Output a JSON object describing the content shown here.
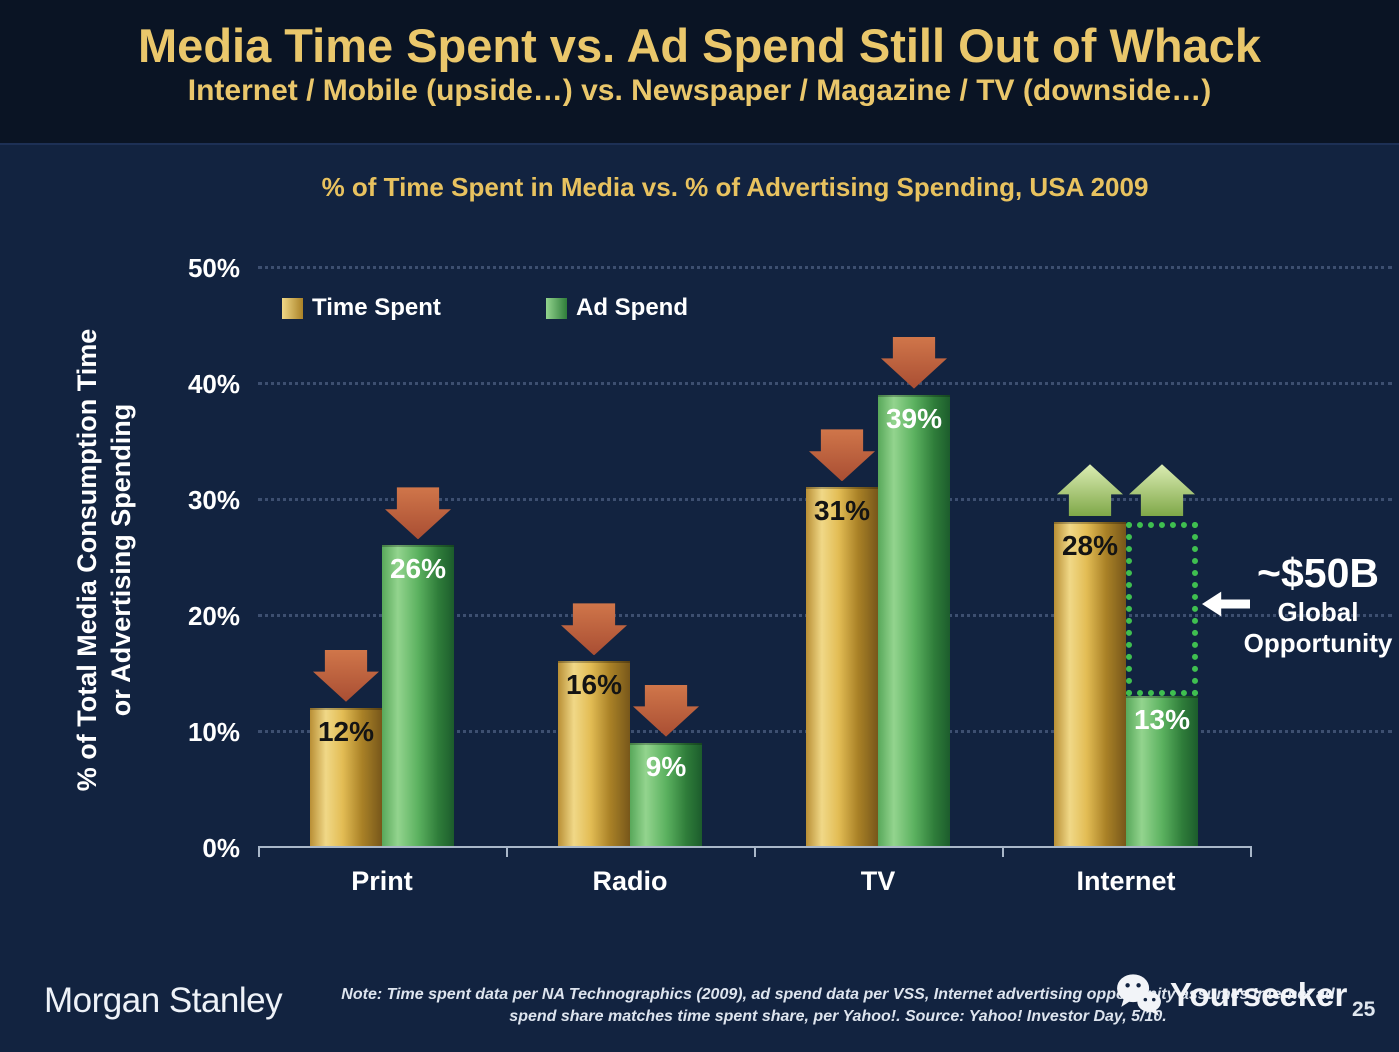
{
  "slide": {
    "title": "Media Time Spent vs. Ad Spend Still Out of Whack",
    "subtitle": "Internet / Mobile (upside…) vs. Newspaper / Magazine / TV (downside…)",
    "page_number": "25"
  },
  "chart_data": {
    "type": "bar",
    "title": "% of Time Spent in Media vs. % of Advertising Spending, USA 2009",
    "ylabel": "% of Total Media Consumption Time or Advertising Spending",
    "ylabel_lines": [
      "% of Total Media Consumption Time",
      "or Advertising Spending"
    ],
    "categories": [
      "Print",
      "Radio",
      "TV",
      "Internet"
    ],
    "series": [
      {
        "name": "Time Spent",
        "color": "#e3bd55",
        "values": [
          12,
          16,
          31,
          28
        ],
        "data_labels": [
          "12%",
          "16%",
          "31%",
          "28%"
        ],
        "arrows": [
          "down",
          "down",
          "down",
          "up"
        ]
      },
      {
        "name": "Ad Spend",
        "color": "#4ea34e",
        "values": [
          26,
          9,
          39,
          13
        ],
        "data_labels": [
          "26%",
          "9%",
          "39%",
          "13%"
        ],
        "arrows": [
          "down",
          "down",
          "down",
          "up"
        ]
      }
    ],
    "ylim": [
      0,
      50
    ],
    "ytick_labels": [
      "0%",
      "10%",
      "20%",
      "30%",
      "40%",
      "50%"
    ],
    "grid": {
      "horizontal": true,
      "style": "dotted"
    },
    "legend_position": "top-left-inside",
    "annotation": {
      "headline": "~$50B",
      "caption_line1": "Global",
      "caption_line2": "Opportunity",
      "gap_category": "Internet",
      "gap_from_pct": 13,
      "gap_to_pct": 28
    }
  },
  "footer": {
    "brand": "Morgan Stanley",
    "note_line1": "Note: Time spent data per NA Technographics (2009), ad spend data per VSS, Internet advertising opportunity assumes Internet ad",
    "note_line2": "spend share matches time spent share, per Yahoo!. Source: Yahoo! Investor Day, 5/10.",
    "watermark": "Yourseeker"
  },
  "colors": {
    "background": "#122340",
    "header_background": "#0a1424",
    "title_gold": "#eac76b",
    "bar_gold": "#e3bd55",
    "bar_green": "#4ea34e",
    "down_arrow": "#c2623f",
    "up_arrow": "#b9d584",
    "gap_box_green": "#3fbf50",
    "axis_text": "#ffffff"
  }
}
